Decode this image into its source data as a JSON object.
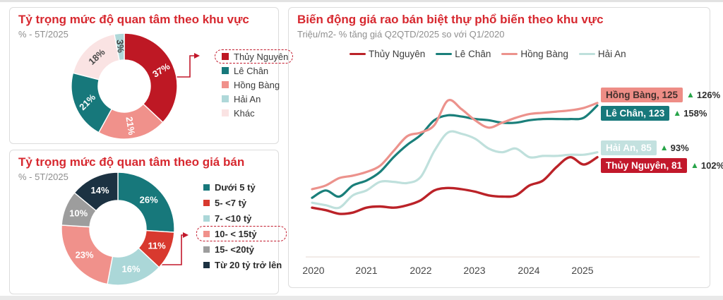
{
  "panels": {
    "region": {
      "title": "Tỷ trọng mức độ quan tâm theo khu vực",
      "subtitle": "% - 5T/2025"
    },
    "price": {
      "title": "Tỷ trọng mức độ quan tâm theo giá bán",
      "subtitle": "% - 5T/2025"
    },
    "trend": {
      "title": "Biến động giá rao bán biệt thự phổ biến theo khu vực",
      "subtitle": "Triệu/m2- % tăng giá Q2QTD/2025 so với Q1/2020"
    }
  },
  "accent_colors": {
    "title_red": "#D7282F",
    "callout_red": "#C2182B",
    "up_green": "#27A449"
  },
  "chart_data": [
    {
      "type": "pie",
      "title": "Tỷ trọng mức độ quan tâm theo khu vực",
      "subtitle": "% - 5T/2025",
      "unit": "%",
      "slices": [
        {
          "label": "Thủy Nguyên",
          "value": 37,
          "color": "#BE1824",
          "label_color": "#ffffff",
          "highlighted": true
        },
        {
          "label": "Hồng Bàng",
          "value": 21,
          "color": "#F0918B",
          "label_color": "#ffffff"
        },
        {
          "label": "Lê Chân",
          "value": 21,
          "color": "#17787B",
          "label_color": "#ffffff"
        },
        {
          "label": "Khác",
          "value": 18,
          "color": "#FAE3E3",
          "label_color": "#4A4A4A"
        },
        {
          "label": "Hải An",
          "value": 3,
          "color": "#AFD8D9",
          "label_color": "#3F3F3F"
        }
      ],
      "legend": [
        {
          "label": "Thủy Nguyên",
          "color": "#BE1824",
          "highlighted": true
        },
        {
          "label": "Lê Chân",
          "color": "#17787B"
        },
        {
          "label": "Hồng Bàng",
          "color": "#F0918B"
        },
        {
          "label": "Hải An",
          "color": "#AFD8D9"
        },
        {
          "label": "Khác",
          "color": "#FAE3E3"
        }
      ]
    },
    {
      "type": "pie",
      "title": "Tỷ trọng mức độ quan tâm theo giá bán",
      "subtitle": "% - 5T/2025",
      "unit": "%",
      "slices": [
        {
          "label": "Dưới 5 tỷ",
          "value": 26,
          "color": "#17787B",
          "label_color": "#ffffff"
        },
        {
          "label": "5- <7 tỷ",
          "value": 11,
          "color": "#D8392F",
          "label_color": "#ffffff"
        },
        {
          "label": "7- <10 tỷ",
          "value": 16,
          "color": "#ABD7D8",
          "label_color": "#ffffff"
        },
        {
          "label": "10- < 15tỷ",
          "value": 23,
          "color": "#F0918B",
          "label_color": "#ffffff",
          "highlighted": true
        },
        {
          "label": "15- <20tỷ",
          "value": 10,
          "color": "#9D9D9D",
          "label_color": "#ffffff"
        },
        {
          "label": "Từ 20 tỷ trở lên",
          "value": 14,
          "color": "#1C3242",
          "label_color": "#ffffff"
        }
      ],
      "legend": [
        {
          "label": "Dưới 5 tỷ",
          "color": "#17787B"
        },
        {
          "label": "5- <7 tỷ",
          "color": "#D8392F"
        },
        {
          "label": "7- <10 tỷ",
          "color": "#ABD7D8"
        },
        {
          "label": "10- < 15tỷ",
          "color": "#F0918B",
          "highlighted": true
        },
        {
          "label": "15- <20tỷ",
          "color": "#9D9D9D"
        },
        {
          "label": "Từ 20 tỷ trở lên",
          "color": "#1C3242"
        }
      ]
    },
    {
      "type": "line",
      "title": "Biến động giá rao bán biệt thự phổ biến theo khu vực",
      "subtitle": "Triệu/m2- % tăng giá Q2QTD/2025 so với Q1/2020",
      "x_tick_labels": [
        "2020",
        "2021",
        "2022",
        "2023",
        "2024",
        "2025"
      ],
      "x_frequency": "quarterly",
      "x_range": [
        "Q1/2020",
        "Q2/2025"
      ],
      "ylim": [
        0,
        140
      ],
      "grid": false,
      "legend_position": "top",
      "up_arrow_color": "#27A449",
      "series": [
        {
          "name": "Thủy Nguyên",
          "color": "#BB2228",
          "values": [
            40,
            38,
            35,
            36,
            40,
            41,
            40,
            42,
            46,
            54,
            56,
            55,
            53,
            50,
            49,
            50,
            58,
            62,
            73,
            81,
            75,
            81
          ],
          "end_label": "Thủy Nguyên,  81",
          "end_value": 81,
          "change_label": "102%",
          "badge_bg": "#C2182B",
          "badge_text_color": "#ffffff"
        },
        {
          "name": "Lê Chân",
          "color": "#1A7F7A",
          "values": [
            48,
            54,
            49,
            58,
            62,
            69,
            81,
            91,
            99,
            111,
            115,
            114,
            112,
            111,
            109,
            109,
            111,
            112,
            112,
            112,
            113,
            123
          ],
          "end_label": "Lê Chân,  123",
          "end_value": 123,
          "change_label": "158%",
          "badge_bg": "#17787B",
          "badge_text_color": "#ffffff"
        },
        {
          "name": "Hồng Bàng",
          "color": "#EC928C",
          "values": [
            55,
            58,
            64,
            66,
            69,
            74,
            86,
            98,
            101,
            107,
            127,
            120,
            111,
            105,
            109,
            113,
            116,
            117,
            118,
            119,
            121,
            125
          ],
          "end_label": "Hồng Bàng,  125",
          "end_value": 125,
          "change_label": "126%",
          "badge_bg": "#EE8D86",
          "badge_text_color": "#41302D"
        },
        {
          "name": "Hải An",
          "color": "#BFE0DC",
          "values": [
            44,
            42,
            40,
            50,
            54,
            61,
            61,
            60,
            65,
            86,
            101,
            100,
            96,
            88,
            85,
            88,
            81,
            82,
            82,
            83,
            83,
            85
          ],
          "end_label": "Hải An,  85",
          "end_value": 85,
          "change_label": "93%",
          "badge_bg": "#C3E1DF",
          "badge_text_color": "#ffffff"
        }
      ]
    }
  ]
}
